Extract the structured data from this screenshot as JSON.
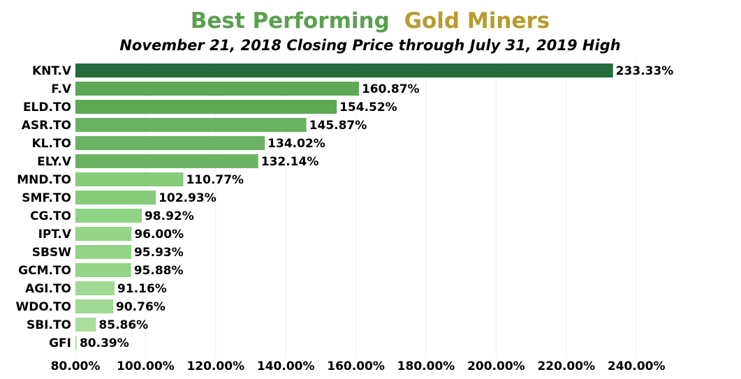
{
  "colors": {
    "title_part1": "#5ba04f",
    "title_part2": "#b89b2f",
    "grid": "#eeeeee",
    "bar_colors": [
      "#256b3e",
      "#5ea856",
      "#5ea856",
      "#6ab362",
      "#6ab362",
      "#6ab362",
      "#86cc7a",
      "#86cc7a",
      "#8fd283",
      "#93d486",
      "#93d486",
      "#93d486",
      "#9fd993",
      "#9fd993",
      "#aadf9f",
      "#b3e3a9"
    ]
  },
  "chart_data": {
    "type": "bar",
    "orientation": "horizontal",
    "title_part1": "Best Performing",
    "title_part2": "Gold Miners",
    "subtitle": "November 21, 2018 Closing Price through July 31, 2019 High",
    "categories": [
      "KNT.V",
      "F.V",
      "ELD.TO",
      "ASR.TO",
      "KL.TO",
      "ELY.V",
      "MND.TO",
      "SMF.TO",
      "CG.TO",
      "IPT.V",
      "SBSW",
      "GCM.TO",
      "AGI.TO",
      "WDO.TO",
      "SBI.TO",
      "GFI"
    ],
    "values": [
      233.33,
      160.87,
      154.52,
      145.87,
      134.02,
      132.14,
      110.77,
      102.93,
      98.92,
      96.0,
      95.93,
      95.88,
      91.16,
      90.76,
      85.86,
      80.39
    ],
    "value_labels": [
      "233.33%",
      "160.87%",
      "154.52%",
      "145.87%",
      "134.02%",
      "132.14%",
      "110.77%",
      "102.93%",
      "98.92%",
      "96.00%",
      "95.93%",
      "95.88%",
      "91.16%",
      "90.76%",
      "85.86%",
      "80.39%"
    ],
    "x_ticks": [
      80,
      100,
      120,
      140,
      160,
      180,
      200,
      220,
      240
    ],
    "x_tick_labels": [
      "80.00%",
      "100.00%",
      "120.00%",
      "140.00%",
      "160.00%",
      "180.00%",
      "200.00%",
      "220.00%",
      "240.00%"
    ],
    "xlim": [
      80,
      250
    ],
    "grid": true,
    "legend": false
  }
}
